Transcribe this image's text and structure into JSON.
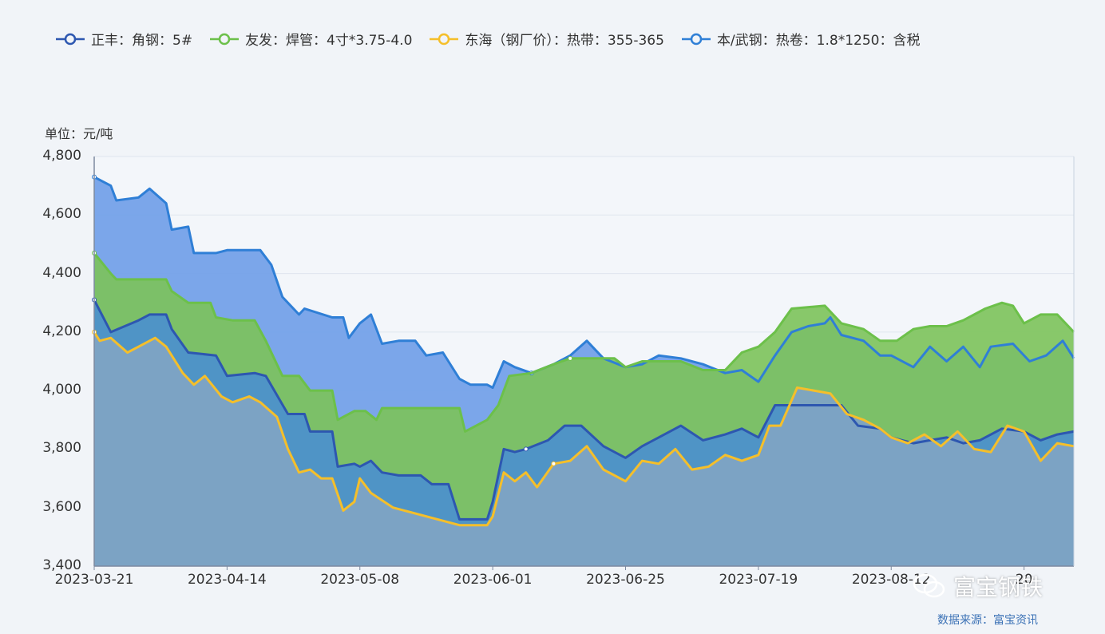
{
  "chart_data": {
    "type": "area",
    "unit_label": "单位：元/吨",
    "ylim": [
      3400,
      4800
    ],
    "y_ticks": [
      3400,
      3600,
      3800,
      4000,
      4200,
      4400,
      4600,
      4800
    ],
    "y_tick_labels": [
      "3,400",
      "3,600",
      "3,800",
      "4,000",
      "4,200",
      "4,400",
      "4,600",
      "4,800"
    ],
    "x_ticks": [
      "2023-03-21",
      "2023-04-14",
      "2023-05-08",
      "2023-06-01",
      "2023-06-25",
      "2023-07-19",
      "2023-08-12",
      "2023-09-05"
    ],
    "x_tick_labels_visible": [
      "2023-03-21",
      "2023-04-14",
      "2023-05-08",
      "2023-06-01",
      "2023-06-25",
      "2023-07-19",
      "2023-08-12",
      "20"
    ],
    "x_range": [
      "2023-03-21",
      "2023-09-14"
    ],
    "grid": true,
    "legend_position": "top",
    "series": [
      {
        "name": "本/武钢：热卷：1.8*1250：含税",
        "color": "#2f7fd6",
        "fill": "#6e9de8",
        "points": [
          [
            "2023-03-21",
            4730
          ],
          [
            "2023-03-24",
            4700
          ],
          [
            "2023-03-25",
            4650
          ],
          [
            "2023-03-29",
            4660
          ],
          [
            "2023-03-31",
            4690
          ],
          [
            "2023-04-03",
            4640
          ],
          [
            "2023-04-04",
            4550
          ],
          [
            "2023-04-07",
            4560
          ],
          [
            "2023-04-08",
            4470
          ],
          [
            "2023-04-12",
            4470
          ],
          [
            "2023-04-14",
            4480
          ],
          [
            "2023-04-20",
            4480
          ],
          [
            "2023-04-22",
            4430
          ],
          [
            "2023-04-24",
            4320
          ],
          [
            "2023-04-27",
            4260
          ],
          [
            "2023-04-28",
            4280
          ],
          [
            "2023-05-03",
            4250
          ],
          [
            "2023-05-05",
            4250
          ],
          [
            "2023-05-06",
            4180
          ],
          [
            "2023-05-08",
            4230
          ],
          [
            "2023-05-10",
            4260
          ],
          [
            "2023-05-12",
            4160
          ],
          [
            "2023-05-15",
            4170
          ],
          [
            "2023-05-18",
            4170
          ],
          [
            "2023-05-20",
            4120
          ],
          [
            "2023-05-23",
            4130
          ],
          [
            "2023-05-26",
            4040
          ],
          [
            "2023-05-28",
            4020
          ],
          [
            "2023-05-31",
            4020
          ],
          [
            "2023-06-01",
            4010
          ],
          [
            "2023-06-03",
            4100
          ],
          [
            "2023-06-05",
            4080
          ],
          [
            "2023-06-08",
            4060
          ],
          [
            "2023-06-12",
            4090
          ],
          [
            "2023-06-15",
            4120
          ],
          [
            "2023-06-18",
            4170
          ],
          [
            "2023-06-21",
            4110
          ],
          [
            "2023-06-25",
            4080
          ],
          [
            "2023-06-28",
            4090
          ],
          [
            "2023-07-01",
            4120
          ],
          [
            "2023-07-05",
            4110
          ],
          [
            "2023-07-09",
            4090
          ],
          [
            "2023-07-13",
            4060
          ],
          [
            "2023-07-16",
            4070
          ],
          [
            "2023-07-19",
            4030
          ],
          [
            "2023-07-22",
            4120
          ],
          [
            "2023-07-25",
            4200
          ],
          [
            "2023-07-28",
            4220
          ],
          [
            "2023-07-31",
            4230
          ],
          [
            "2023-08-01",
            4250
          ],
          [
            "2023-08-03",
            4190
          ],
          [
            "2023-08-07",
            4170
          ],
          [
            "2023-08-10",
            4120
          ],
          [
            "2023-08-12",
            4120
          ],
          [
            "2023-08-16",
            4080
          ],
          [
            "2023-08-19",
            4150
          ],
          [
            "2023-08-22",
            4100
          ],
          [
            "2023-08-25",
            4150
          ],
          [
            "2023-08-28",
            4080
          ],
          [
            "2023-08-30",
            4150
          ],
          [
            "2023-09-03",
            4160
          ],
          [
            "2023-09-06",
            4100
          ],
          [
            "2023-09-09",
            4120
          ],
          [
            "2023-09-12",
            4170
          ],
          [
            "2023-09-14",
            4110
          ]
        ]
      },
      {
        "name": "友发：焊管：4寸*3.75-4.0",
        "color": "#6cc04a",
        "fill": "#7cc35a",
        "points": [
          [
            "2023-03-21",
            4470
          ],
          [
            "2023-03-24",
            4400
          ],
          [
            "2023-03-25",
            4380
          ],
          [
            "2023-04-03",
            4380
          ],
          [
            "2023-04-04",
            4340
          ],
          [
            "2023-04-07",
            4300
          ],
          [
            "2023-04-11",
            4300
          ],
          [
            "2023-04-12",
            4250
          ],
          [
            "2023-04-15",
            4240
          ],
          [
            "2023-04-19",
            4240
          ],
          [
            "2023-04-21",
            4170
          ],
          [
            "2023-04-24",
            4050
          ],
          [
            "2023-04-27",
            4050
          ],
          [
            "2023-04-29",
            4000
          ],
          [
            "2023-05-03",
            4000
          ],
          [
            "2023-05-04",
            3900
          ],
          [
            "2023-05-07",
            3930
          ],
          [
            "2023-05-09",
            3930
          ],
          [
            "2023-05-11",
            3900
          ],
          [
            "2023-05-12",
            3940
          ],
          [
            "2023-05-26",
            3940
          ],
          [
            "2023-05-27",
            3860
          ],
          [
            "2023-05-31",
            3900
          ],
          [
            "2023-06-02",
            3950
          ],
          [
            "2023-06-04",
            4050
          ],
          [
            "2023-06-08",
            4060
          ],
          [
            "2023-06-12",
            4090
          ],
          [
            "2023-06-15",
            4110
          ],
          [
            "2023-06-23",
            4110
          ],
          [
            "2023-06-25",
            4080
          ],
          [
            "2023-06-28",
            4100
          ],
          [
            "2023-07-01",
            4100
          ],
          [
            "2023-07-05",
            4100
          ],
          [
            "2023-07-09",
            4070
          ],
          [
            "2023-07-13",
            4070
          ],
          [
            "2023-07-16",
            4130
          ],
          [
            "2023-07-19",
            4150
          ],
          [
            "2023-07-22",
            4200
          ],
          [
            "2023-07-25",
            4280
          ],
          [
            "2023-07-31",
            4290
          ],
          [
            "2023-08-03",
            4230
          ],
          [
            "2023-08-07",
            4210
          ],
          [
            "2023-08-10",
            4170
          ],
          [
            "2023-08-13",
            4170
          ],
          [
            "2023-08-16",
            4210
          ],
          [
            "2023-08-19",
            4220
          ],
          [
            "2023-08-22",
            4220
          ],
          [
            "2023-08-25",
            4240
          ],
          [
            "2023-08-29",
            4280
          ],
          [
            "2023-09-01",
            4300
          ],
          [
            "2023-09-03",
            4290
          ],
          [
            "2023-09-05",
            4230
          ],
          [
            "2023-09-08",
            4260
          ],
          [
            "2023-09-11",
            4260
          ],
          [
            "2023-09-14",
            4200
          ]
        ]
      },
      {
        "name": "正丰：角钢：5#",
        "color": "#2d57b0",
        "fill": "#4a8fd0",
        "points": [
          [
            "2023-03-21",
            4310
          ],
          [
            "2023-03-24",
            4200
          ],
          [
            "2023-03-29",
            4240
          ],
          [
            "2023-03-31",
            4260
          ],
          [
            "2023-04-03",
            4260
          ],
          [
            "2023-04-04",
            4210
          ],
          [
            "2023-04-07",
            4130
          ],
          [
            "2023-04-12",
            4120
          ],
          [
            "2023-04-14",
            4050
          ],
          [
            "2023-04-19",
            4060
          ],
          [
            "2023-04-21",
            4050
          ],
          [
            "2023-04-25",
            3920
          ],
          [
            "2023-04-28",
            3920
          ],
          [
            "2023-04-29",
            3860
          ],
          [
            "2023-05-03",
            3860
          ],
          [
            "2023-05-04",
            3740
          ],
          [
            "2023-05-07",
            3750
          ],
          [
            "2023-05-08",
            3740
          ],
          [
            "2023-05-10",
            3760
          ],
          [
            "2023-05-12",
            3720
          ],
          [
            "2023-05-15",
            3710
          ],
          [
            "2023-05-19",
            3710
          ],
          [
            "2023-05-21",
            3680
          ],
          [
            "2023-05-24",
            3680
          ],
          [
            "2023-05-26",
            3560
          ],
          [
            "2023-05-31",
            3560
          ],
          [
            "2023-06-01",
            3620
          ],
          [
            "2023-06-03",
            3800
          ],
          [
            "2023-06-05",
            3790
          ],
          [
            "2023-06-07",
            3800
          ],
          [
            "2023-06-11",
            3830
          ],
          [
            "2023-06-14",
            3880
          ],
          [
            "2023-06-17",
            3880
          ],
          [
            "2023-06-21",
            3810
          ],
          [
            "2023-06-25",
            3770
          ],
          [
            "2023-06-28",
            3810
          ],
          [
            "2023-07-01",
            3840
          ],
          [
            "2023-07-05",
            3880
          ],
          [
            "2023-07-09",
            3830
          ],
          [
            "2023-07-13",
            3850
          ],
          [
            "2023-07-16",
            3870
          ],
          [
            "2023-07-19",
            3840
          ],
          [
            "2023-07-22",
            3950
          ],
          [
            "2023-07-25",
            3950
          ],
          [
            "2023-07-31",
            3950
          ],
          [
            "2023-08-03",
            3950
          ],
          [
            "2023-08-06",
            3880
          ],
          [
            "2023-08-10",
            3870
          ],
          [
            "2023-08-12",
            3840
          ],
          [
            "2023-08-16",
            3820
          ],
          [
            "2023-08-19",
            3830
          ],
          [
            "2023-08-22",
            3840
          ],
          [
            "2023-08-25",
            3820
          ],
          [
            "2023-08-28",
            3830
          ],
          [
            "2023-09-01",
            3870
          ],
          [
            "2023-09-05",
            3860
          ],
          [
            "2023-09-08",
            3830
          ],
          [
            "2023-09-11",
            3850
          ],
          [
            "2023-09-14",
            3860
          ]
        ]
      },
      {
        "name": "东海（钢厂价）：热带：355-365",
        "color": "#f5bf2a",
        "fill": "#7ea3c4",
        "points": [
          [
            "2023-03-21",
            4200
          ],
          [
            "2023-03-22",
            4170
          ],
          [
            "2023-03-24",
            4180
          ],
          [
            "2023-03-27",
            4130
          ],
          [
            "2023-03-29",
            4150
          ],
          [
            "2023-04-01",
            4180
          ],
          [
            "2023-04-03",
            4150
          ],
          [
            "2023-04-06",
            4060
          ],
          [
            "2023-04-08",
            4020
          ],
          [
            "2023-04-10",
            4050
          ],
          [
            "2023-04-13",
            3980
          ],
          [
            "2023-04-15",
            3960
          ],
          [
            "2023-04-18",
            3980
          ],
          [
            "2023-04-20",
            3960
          ],
          [
            "2023-04-23",
            3910
          ],
          [
            "2023-04-25",
            3800
          ],
          [
            "2023-04-27",
            3720
          ],
          [
            "2023-04-29",
            3730
          ],
          [
            "2023-05-01",
            3700
          ],
          [
            "2023-05-03",
            3700
          ],
          [
            "2023-05-05",
            3590
          ],
          [
            "2023-05-07",
            3620
          ],
          [
            "2023-05-08",
            3700
          ],
          [
            "2023-05-10",
            3650
          ],
          [
            "2023-05-14",
            3600
          ],
          [
            "2023-05-20",
            3570
          ],
          [
            "2023-05-26",
            3540
          ],
          [
            "2023-05-31",
            3540
          ],
          [
            "2023-06-01",
            3570
          ],
          [
            "2023-06-03",
            3720
          ],
          [
            "2023-06-05",
            3690
          ],
          [
            "2023-06-07",
            3720
          ],
          [
            "2023-06-09",
            3670
          ],
          [
            "2023-06-12",
            3750
          ],
          [
            "2023-06-15",
            3760
          ],
          [
            "2023-06-18",
            3810
          ],
          [
            "2023-06-21",
            3730
          ],
          [
            "2023-06-25",
            3690
          ],
          [
            "2023-06-28",
            3760
          ],
          [
            "2023-07-01",
            3750
          ],
          [
            "2023-07-04",
            3800
          ],
          [
            "2023-07-07",
            3730
          ],
          [
            "2023-07-10",
            3740
          ],
          [
            "2023-07-13",
            3780
          ],
          [
            "2023-07-16",
            3760
          ],
          [
            "2023-07-19",
            3780
          ],
          [
            "2023-07-21",
            3880
          ],
          [
            "2023-07-23",
            3880
          ],
          [
            "2023-07-26",
            4010
          ],
          [
            "2023-07-29",
            4000
          ],
          [
            "2023-08-01",
            3990
          ],
          [
            "2023-08-04",
            3920
          ],
          [
            "2023-08-07",
            3900
          ],
          [
            "2023-08-10",
            3870
          ],
          [
            "2023-08-12",
            3840
          ],
          [
            "2023-08-15",
            3820
          ],
          [
            "2023-08-18",
            3850
          ],
          [
            "2023-08-21",
            3810
          ],
          [
            "2023-08-24",
            3860
          ],
          [
            "2023-08-27",
            3800
          ],
          [
            "2023-08-30",
            3790
          ],
          [
            "2023-09-02",
            3880
          ],
          [
            "2023-09-05",
            3860
          ],
          [
            "2023-09-08",
            3760
          ],
          [
            "2023-09-11",
            3820
          ],
          [
            "2023-09-14",
            3810
          ]
        ]
      }
    ]
  },
  "legend": [
    {
      "name": "正丰：角钢：5#",
      "color": "#2d57b0"
    },
    {
      "name": "友发：焊管：4寸*3.75-4.0",
      "color": "#6cc04a"
    },
    {
      "name": "东海（钢厂价）：热带：355-365",
      "color": "#f5bf2a"
    },
    {
      "name": "本/武钢：热卷：1.8*1250：含税",
      "color": "#2f7fd6"
    }
  ],
  "watermark": "富宝钢铁",
  "source": "数据来源：富宝资讯",
  "colors": {
    "background": "#f1f4f8",
    "grid": "#dfe5ee",
    "axis": "#7d8aa0"
  }
}
